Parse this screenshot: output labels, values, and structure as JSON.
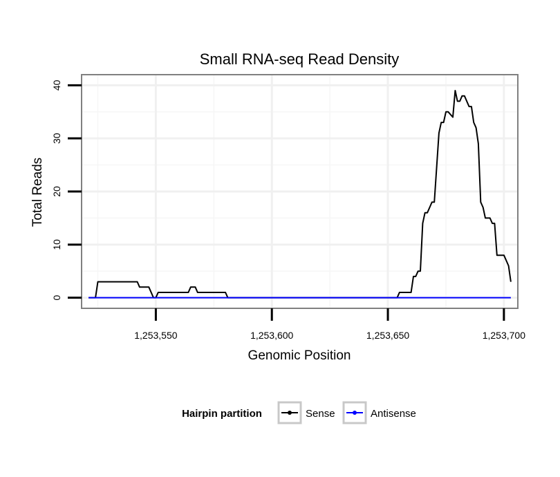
{
  "chart_data": {
    "type": "line",
    "title": "Small RNA-seq Read Density",
    "xlabel": "Genomic Position",
    "ylabel": "Total Reads",
    "xlim": [
      1253518,
      1253706
    ],
    "ylim": [
      -2,
      42
    ],
    "x_ticks": [
      1253550,
      1253600,
      1253650,
      1253700
    ],
    "x_tick_labels": [
      "1,253,550",
      "1,253,600",
      "1,253,650",
      "1,253,700"
    ],
    "y_ticks": [
      0,
      10,
      20,
      30,
      40
    ],
    "y_tick_labels": [
      "0",
      "10",
      "20",
      "30",
      "40"
    ],
    "grid": true,
    "legend": {
      "title": "Hairpin partition",
      "position": "bottom",
      "entries": [
        "Sense",
        "Antisense"
      ]
    },
    "series": [
      {
        "name": "Sense",
        "color": "#000000",
        "x": [
          1253521,
          1253524,
          1253525,
          1253542,
          1253543,
          1253547,
          1253549,
          1253550,
          1253551,
          1253564,
          1253565,
          1253567,
          1253568,
          1253580,
          1253581,
          1253654,
          1253655,
          1253660,
          1253661,
          1253662,
          1253663,
          1253664,
          1253665,
          1253666,
          1253667,
          1253668,
          1253669,
          1253670,
          1253672,
          1253673,
          1253674,
          1253675,
          1253676,
          1253678,
          1253679,
          1253680,
          1253681,
          1253682,
          1253683,
          1253685,
          1253686,
          1253687,
          1253688,
          1253689,
          1253690,
          1253691,
          1253692,
          1253693,
          1253694,
          1253695,
          1253696,
          1253697,
          1253698,
          1253700,
          1253702,
          1253703
        ],
        "values": [
          0,
          0,
          3,
          3,
          2,
          2,
          0,
          0,
          1,
          1,
          2,
          2,
          1,
          1,
          0,
          0,
          1,
          1,
          4,
          4,
          5,
          5,
          14,
          16,
          16,
          17,
          18,
          18,
          31,
          33,
          33,
          35,
          35,
          34,
          39,
          37,
          37,
          38,
          38,
          36,
          36,
          33,
          32,
          29,
          18,
          17,
          15,
          15,
          15,
          14,
          14,
          8,
          8,
          8,
          6,
          3
        ]
      },
      {
        "name": "Antisense",
        "color": "#0000ff",
        "x": [
          1253521,
          1253703
        ],
        "values": [
          0,
          0
        ]
      }
    ]
  }
}
